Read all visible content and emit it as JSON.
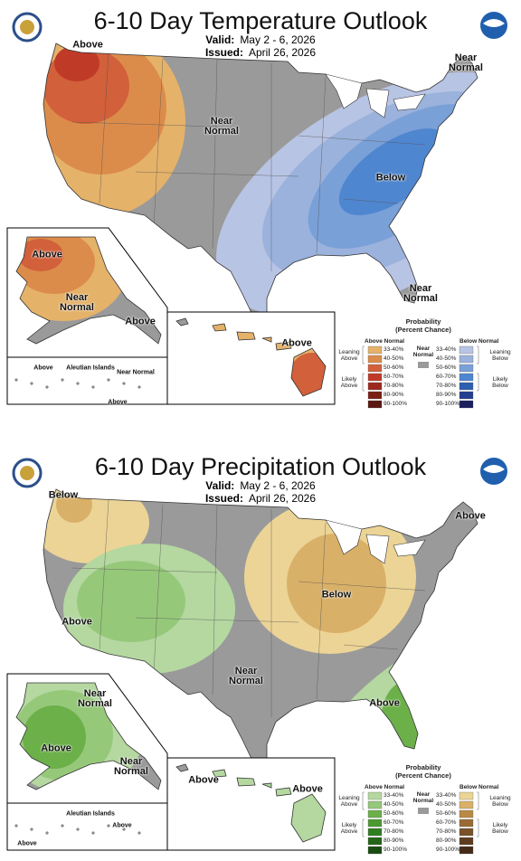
{
  "panels": [
    {
      "title": "6-10 Day Temperature Outlook",
      "valid_label": "Valid:",
      "valid": "May 2 - 6, 2026",
      "issued_label": "Issued:",
      "issued": "April 26, 2026",
      "labels": [
        "Above",
        "Near Normal",
        "Below",
        "Near Normal",
        "Near Normal"
      ],
      "alaska_labels": [
        "Above",
        "Near Normal",
        "Above"
      ],
      "aleutian_labels": [
        "Above",
        "Aleutian Islands",
        "Near Normal",
        "Above"
      ],
      "hawaii_labels": [
        "Above"
      ],
      "legend": {
        "title": "Probability",
        "subtitle": "(Percent Chance)",
        "above_header": "Above Normal",
        "below_header": "Below Normal",
        "near": "Near Normal",
        "leaning_above": "Leaning Above",
        "likely_above": "Likely Above",
        "leaning_below": "Leaning Below",
        "likely_below": "Likely Below",
        "ranges": [
          "33-40%",
          "40-50%",
          "50-60%",
          "60-70%",
          "70-80%",
          "80-90%",
          "90-100%"
        ],
        "above_colors": [
          "#e5b26a",
          "#dc8c4a",
          "#d2603a",
          "#c03a28",
          "#9c2a1c",
          "#7a2015",
          "#5a1810"
        ],
        "below_colors": [
          "#b8c4e4",
          "#9ab2dc",
          "#7aa0d8",
          "#4f86d0",
          "#2c5fb0",
          "#233f8e",
          "#1b1f5e"
        ],
        "near_color": "#9a9a9a"
      }
    },
    {
      "title": "6-10 Day Precipitation Outlook",
      "valid_label": "Valid:",
      "valid": "May 2 - 6, 2026",
      "issued_label": "Issued:",
      "issued": "April 26, 2026",
      "labels": [
        "Below",
        "Above",
        "Below",
        "Near Normal",
        "Above",
        "Above"
      ],
      "alaska_labels": [
        "Near Normal",
        "Above",
        "Near Normal"
      ],
      "aleutian_labels": [
        "Aleutian Islands",
        "Above",
        "Above"
      ],
      "hawaii_labels": [
        "Above",
        "Above"
      ],
      "legend": {
        "title": "Probability",
        "subtitle": "(Percent Chance)",
        "above_header": "Above Normal",
        "below_header": "Below Normal",
        "near": "Near Normal",
        "leaning_above": "Leaning Above",
        "likely_above": "Likely Above",
        "leaning_below": "Leaning Below",
        "likely_below": "Likely Below",
        "ranges": [
          "33-40%",
          "40-50%",
          "50-60%",
          "60-70%",
          "70-80%",
          "80-90%",
          "90-100%"
        ],
        "above_colors": [
          "#b4d8a0",
          "#96c87a",
          "#6cb04a",
          "#4a9a30",
          "#2f7e22",
          "#246518",
          "#194c10"
        ],
        "below_colors": [
          "#ecd496",
          "#d9b068",
          "#b98a45",
          "#9a6a34",
          "#7a5028",
          "#5e3c20",
          "#452a18"
        ],
        "near_color": "#9a9a9a"
      }
    }
  ]
}
